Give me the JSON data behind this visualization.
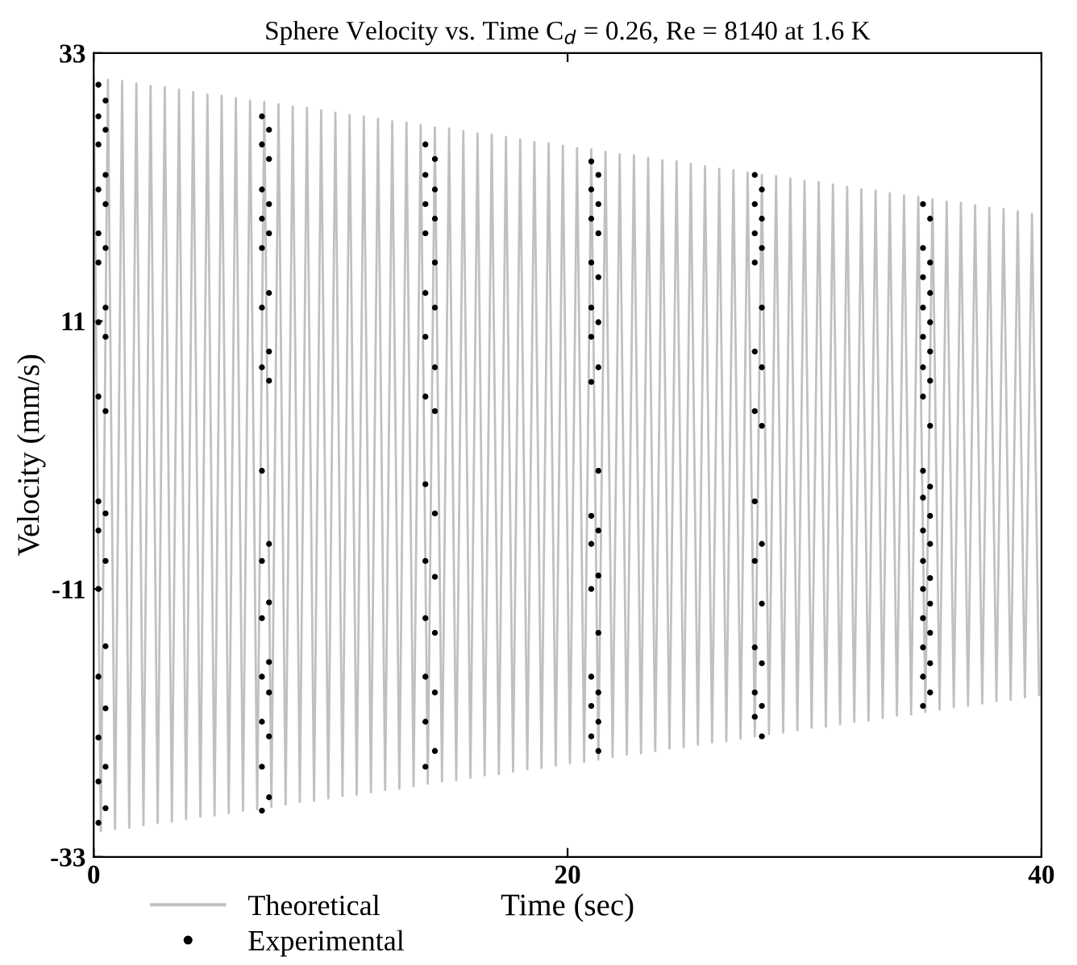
{
  "chart_data": {
    "type": "line",
    "title": "Sphere Velocity vs. Time C$_{d}$ = 0.26, Re = 8140 at 1.6 K",
    "xlabel": "Time (sec)",
    "ylabel": "Velocity (mm/s)",
    "xlim": [
      0,
      40
    ],
    "xticks": [
      0,
      20,
      40
    ],
    "ylim": [
      -33,
      33
    ],
    "yticks": [
      -33,
      -11,
      11,
      33
    ],
    "grid": false,
    "legend": "bottom left",
    "series": [
      {
        "name": "Theoretical",
        "color": "#c0c0c0",
        "marker": "none",
        "line_style": "solid",
        "x": [
          0,
          0.3,
          0.6,
          0.9,
          1.2,
          1.5,
          1.8,
          2.1,
          2.4,
          2.7,
          3.0,
          3.3,
          3.6,
          3.9,
          4.2,
          4.5,
          4.8,
          5.1,
          5.4,
          5.7,
          6.0,
          6.3,
          6.6,
          6.9,
          7.2,
          7.5,
          7.8,
          8.1,
          8.4,
          8.7,
          9.0,
          9.3,
          9.6,
          9.9,
          10.2,
          10.5,
          10.8,
          11.1,
          11.4,
          11.7,
          12.0,
          12.3,
          12.6,
          12.9,
          13.2,
          13.5,
          13.8,
          14.1,
          14.4,
          14.7,
          15.0,
          15.3,
          15.6,
          15.9,
          16.2,
          16.5,
          16.8,
          17.1,
          17.4,
          17.7,
          18.0,
          18.3,
          18.6,
          18.9,
          19.2,
          19.5,
          19.8,
          20.1,
          20.4,
          20.7,
          21.0,
          21.3,
          21.6,
          21.9,
          22.2,
          22.5,
          22.8,
          23.1,
          23.4,
          23.7,
          24.0,
          24.3,
          24.6,
          24.9,
          25.2,
          25.5,
          25.8,
          26.1,
          26.4,
          26.7,
          27.0,
          27.3,
          27.6,
          27.9,
          28.2,
          28.5,
          28.8,
          29.1,
          29.4,
          29.7,
          30.0,
          30.3,
          30.6,
          30.9,
          31.2,
          31.5,
          31.8,
          32.1,
          32.4,
          32.7,
          33.0,
          33.3,
          33.6,
          33.9,
          34.2,
          34.5,
          34.8,
          35.1,
          35.4,
          35.7,
          36.0,
          36.3,
          36.6,
          36.9,
          37.2,
          37.5,
          37.8,
          38.1,
          38.4,
          38.7,
          39.0,
          39.3,
          39.6,
          39.9
        ],
        "values": [
          31.0,
          -30.9,
          30.8,
          -30.7,
          30.7,
          -30.6,
          30.5,
          -30.4,
          30.3,
          -30.2,
          30.2,
          -30.1,
          30.0,
          -29.9,
          29.8,
          -29.7,
          29.6,
          -29.6,
          29.5,
          -29.4,
          29.3,
          -29.2,
          29.1,
          -29.1,
          29.0,
          -28.9,
          28.8,
          -28.7,
          28.6,
          -28.5,
          28.5,
          -28.4,
          28.3,
          -28.2,
          28.1,
          -28.0,
          27.9,
          -27.9,
          27.8,
          -27.7,
          27.6,
          -27.5,
          27.4,
          -27.4,
          27.3,
          -27.2,
          27.1,
          -27.0,
          26.9,
          -26.8,
          26.8,
          -26.7,
          26.6,
          -26.5,
          26.4,
          -26.3,
          26.3,
          -26.2,
          26.1,
          -26.0,
          25.9,
          -25.8,
          25.7,
          -25.7,
          25.6,
          -25.5,
          25.4,
          -25.3,
          25.2,
          -25.2,
          25.1,
          -25.0,
          24.9,
          -24.8,
          24.7,
          -24.6,
          24.6,
          -24.5,
          24.4,
          -24.3,
          24.2,
          -24.1,
          24.1,
          -24.0,
          23.9,
          -23.8,
          23.7,
          -23.6,
          23.5,
          -23.5,
          23.4,
          -23.3,
          23.2,
          -23.1,
          23.0,
          -22.9,
          22.9,
          -22.8,
          22.7,
          -22.6,
          22.5,
          -22.4,
          22.4,
          -22.3,
          22.2,
          -22.1,
          22.0,
          -21.9,
          21.8,
          -21.8,
          21.7,
          -21.6,
          21.5,
          -21.4,
          21.3,
          -21.3,
          21.2,
          -21.1,
          21.0,
          -20.9,
          20.8,
          -20.7,
          20.7,
          -20.6,
          20.5,
          -20.4,
          20.3,
          -20.2,
          20.2,
          -20.1,
          20.0,
          -19.9,
          19.8,
          -19.7
        ]
      },
      {
        "name": "Experimental",
        "type": "scatter",
        "color": "#000000",
        "marker": "circle",
        "x": [
          0.2,
          0.5,
          0.2,
          0.5,
          0.2,
          0.5,
          0.2,
          0.5,
          0.2,
          0.5,
          0.2,
          0.5,
          0.2,
          0.5,
          0.2,
          0.5,
          0.2,
          0.5,
          0.2,
          0.5,
          0.2,
          0.5,
          0.2,
          0.5,
          0.2,
          0.5,
          0.2,
          0.5,
          0.2,
          7.1,
          7.4,
          7.1,
          7.4,
          7.1,
          7.4,
          7.1,
          7.4,
          7.1,
          7.4,
          7.1,
          7.4,
          7.1,
          7.4,
          7.1,
          7.4,
          7.1,
          7.4,
          7.1,
          7.4,
          7.1,
          7.4,
          7.1,
          7.4,
          7.1,
          7.4,
          7.1,
          14.0,
          14.4,
          14.0,
          14.4,
          14.0,
          14.4,
          14.0,
          14.4,
          14.0,
          14.4,
          14.0,
          14.4,
          14.0,
          14.4,
          14.0,
          14.4,
          14.0,
          14.4,
          14.0,
          14.4,
          14.0,
          14.4,
          14.0,
          14.4,
          14.0,
          21.0,
          21.3,
          21.0,
          21.3,
          21.0,
          21.3,
          21.0,
          21.3,
          21.0,
          21.3,
          21.0,
          21.3,
          21.0,
          21.3,
          21.0,
          21.3,
          21.0,
          21.3,
          21.0,
          21.3,
          21.0,
          21.3,
          21.0,
          21.3,
          21.0,
          21.3,
          27.9,
          28.2,
          27.9,
          28.2,
          27.9,
          28.2,
          27.9,
          28.2,
          27.9,
          28.2,
          27.9,
          28.2,
          27.9,
          28.2,
          27.9,
          28.2,
          27.9,
          28.2,
          27.9,
          28.2,
          27.9,
          28.2,
          35.0,
          35.3,
          35.0,
          35.3,
          35.0,
          35.3,
          35.0,
          35.3,
          35.0,
          35.3,
          35.0,
          35.3,
          35.0,
          35.3,
          35.0,
          35.3,
          35.0,
          35.3,
          35.0,
          35.3,
          35.0,
          35.3,
          35.0,
          35.3,
          35.0,
          35.3,
          35.0,
          35.3,
          35.0,
          35.3,
          35.0
        ],
        "values": [
          30.4,
          29.1,
          27.8,
          26.7,
          25.5,
          23.0,
          21.8,
          20.6,
          18.2,
          17.0,
          15.8,
          12.1,
          10.9,
          9.7,
          4.8,
          3.6,
          -3.8,
          -4.8,
          -6.2,
          -8.7,
          -11.0,
          -15.7,
          -18.2,
          -20.8,
          -23.2,
          -25.6,
          -26.8,
          -29.0,
          -30.2,
          27.8,
          26.7,
          25.5,
          24.3,
          21.8,
          20.6,
          19.4,
          18.2,
          17.0,
          13.3,
          12.1,
          8.5,
          7.2,
          6.1,
          -1.3,
          -7.3,
          -8.7,
          -12.1,
          -13.4,
          -17.0,
          -18.2,
          -19.5,
          -21.9,
          -23.1,
          -25.6,
          -28.1,
          -29.2,
          25.5,
          24.3,
          23.0,
          21.8,
          20.6,
          19.4,
          18.2,
          15.8,
          13.3,
          12.1,
          9.7,
          7.2,
          4.8,
          3.6,
          -2.4,
          -4.8,
          -8.7,
          -10.0,
          -13.4,
          -14.6,
          -18.2,
          -19.5,
          -21.9,
          -24.3,
          -25.6,
          24.1,
          23.0,
          21.8,
          20.6,
          19.4,
          18.2,
          15.8,
          14.6,
          12.1,
          10.9,
          9.7,
          7.2,
          6.0,
          -1.3,
          -5.0,
          -6.2,
          -7.3,
          -9.9,
          -11.0,
          -14.6,
          -18.2,
          -19.5,
          -20.6,
          -21.9,
          -23.1,
          -24.3,
          23.0,
          21.8,
          20.6,
          19.4,
          18.2,
          17.0,
          15.8,
          12.1,
          8.5,
          7.2,
          3.6,
          2.4,
          -3.8,
          -7.3,
          -8.7,
          -12.2,
          -15.8,
          -17.1,
          -19.5,
          -20.6,
          -21.5,
          -23.1,
          20.6,
          19.4,
          17.0,
          15.8,
          14.6,
          13.3,
          12.1,
          10.9,
          9.7,
          8.5,
          7.2,
          6.1,
          4.8,
          2.4,
          -1.3,
          -2.6,
          -3.5,
          -5.0,
          -6.2,
          -7.3,
          -8.7,
          -10.1,
          -11.0,
          -12.2,
          -13.4,
          -14.6,
          -15.8,
          -17.1,
          -18.2,
          -19.5,
          -20.6
        ]
      }
    ]
  }
}
